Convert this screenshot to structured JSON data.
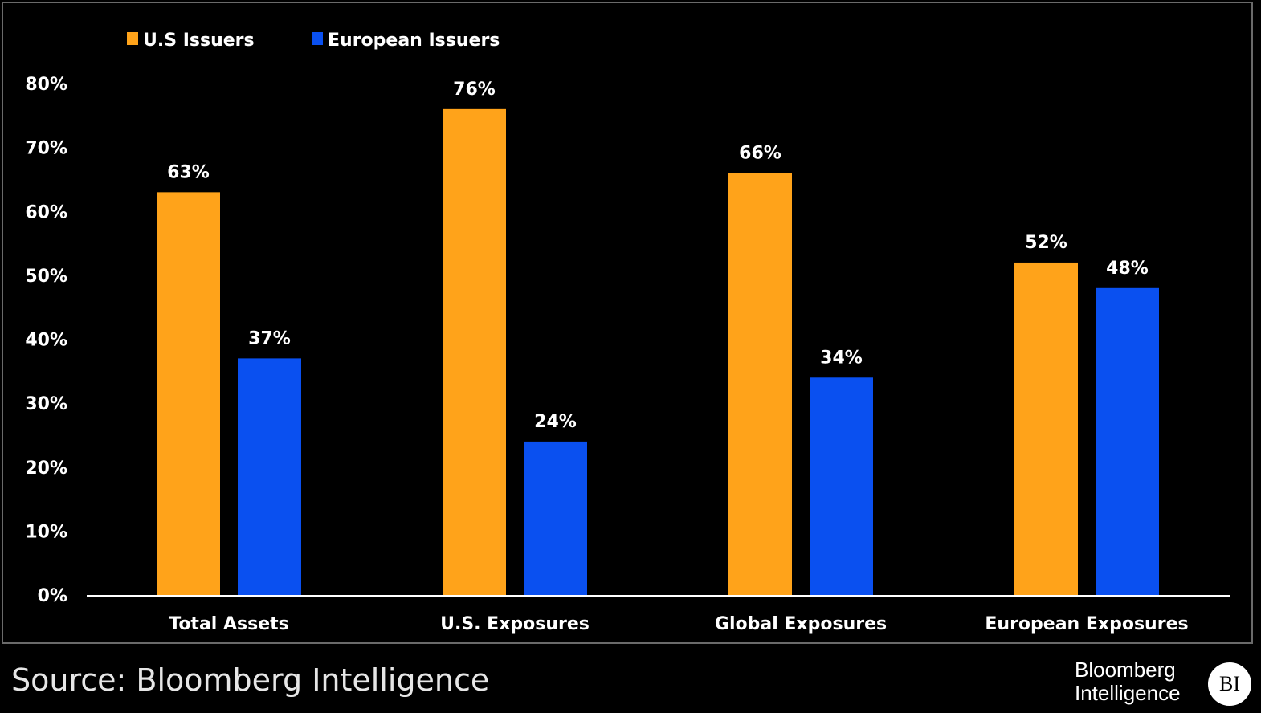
{
  "chart_data": {
    "type": "bar",
    "categories": [
      "Total Assets",
      "U.S. Exposures",
      "Global Exposures",
      "European Exposures"
    ],
    "series": [
      {
        "name": "U.S Issuers",
        "color": "#FFA31A",
        "values": [
          63,
          76,
          66,
          52
        ],
        "labels": [
          "63%",
          "76%",
          "66%",
          "52%"
        ]
      },
      {
        "name": "European Issuers",
        "color": "#0A50F0",
        "values": [
          37,
          24,
          34,
          48
        ],
        "labels": [
          "37%",
          "24%",
          "34%",
          "48%"
        ]
      }
    ],
    "ylim": [
      0,
      80
    ],
    "yticks": [
      0,
      10,
      20,
      30,
      40,
      50,
      60,
      70,
      80
    ],
    "ytick_labels": [
      "0%",
      "10%",
      "20%",
      "30%",
      "40%",
      "50%",
      "60%",
      "70%",
      "80%"
    ],
    "legend_position": "top-left",
    "grid": false,
    "title": "",
    "xlabel": "",
    "ylabel": ""
  },
  "footer": {
    "source": "Source: Bloomberg Intelligence",
    "brand_line1": "Bloomberg",
    "brand_line2": "Intelligence",
    "brand_badge": "BI"
  },
  "colors": {
    "background": "#000000",
    "text": "#ffffff",
    "us_issuers": "#FFA31A",
    "european_issuers": "#0A50F0"
  }
}
